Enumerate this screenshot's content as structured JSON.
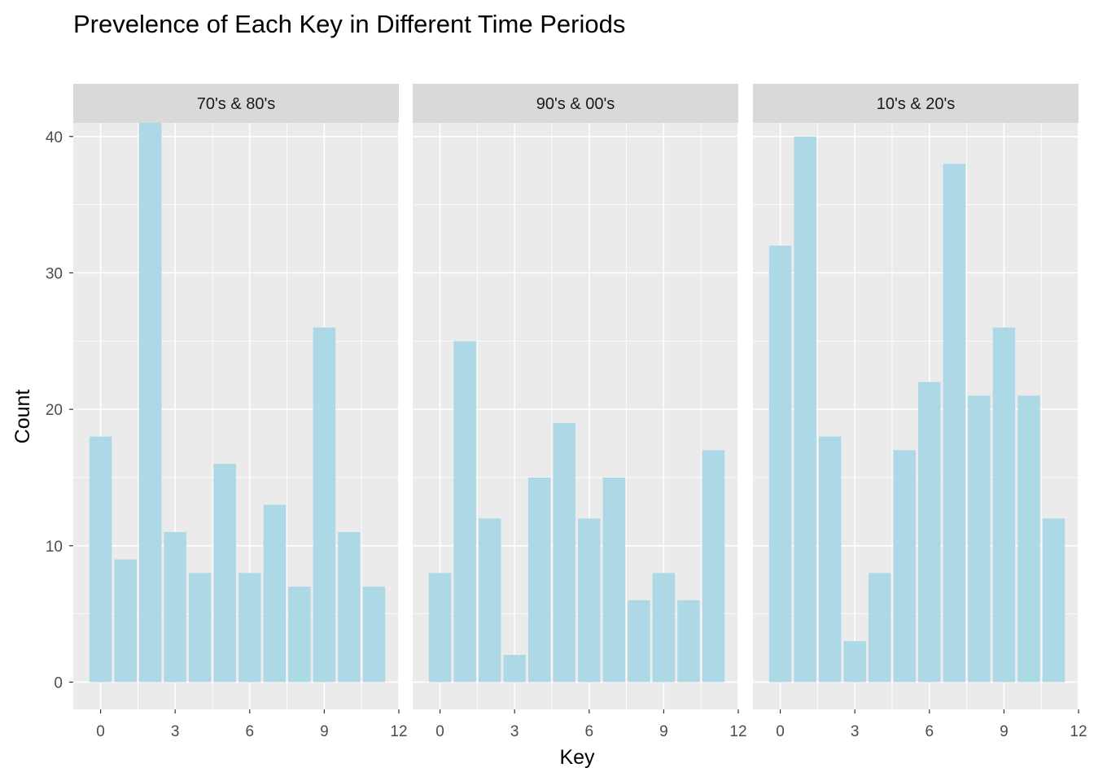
{
  "chart_data": {
    "type": "bar",
    "title": "Prevelence of Each Key in Different Time Periods",
    "xlabel": "Key",
    "ylabel": "Count",
    "x": [
      0,
      1,
      2,
      3,
      4,
      5,
      6,
      7,
      8,
      9,
      10,
      11
    ],
    "xlim": [
      -1.1,
      12
    ],
    "xticks": [
      0,
      3,
      6,
      9,
      12
    ],
    "ylim": [
      -2,
      41
    ],
    "yticks": [
      0,
      10,
      20,
      30,
      40
    ],
    "grid": true,
    "bar_color": "#add8e6",
    "panel_background": "#ebebeb",
    "strip_background": "#d9d9d9",
    "panels": [
      {
        "label": "70's & 80's",
        "values": [
          18,
          9,
          41,
          11,
          8,
          16,
          8,
          13,
          7,
          26,
          11,
          7
        ]
      },
      {
        "label": "90's & 00's",
        "values": [
          8,
          25,
          12,
          2,
          15,
          19,
          12,
          15,
          6,
          8,
          6,
          17
        ]
      },
      {
        "label": "10's & 20's",
        "values": [
          32,
          40,
          18,
          3,
          8,
          17,
          22,
          38,
          21,
          26,
          21,
          12
        ]
      }
    ]
  }
}
